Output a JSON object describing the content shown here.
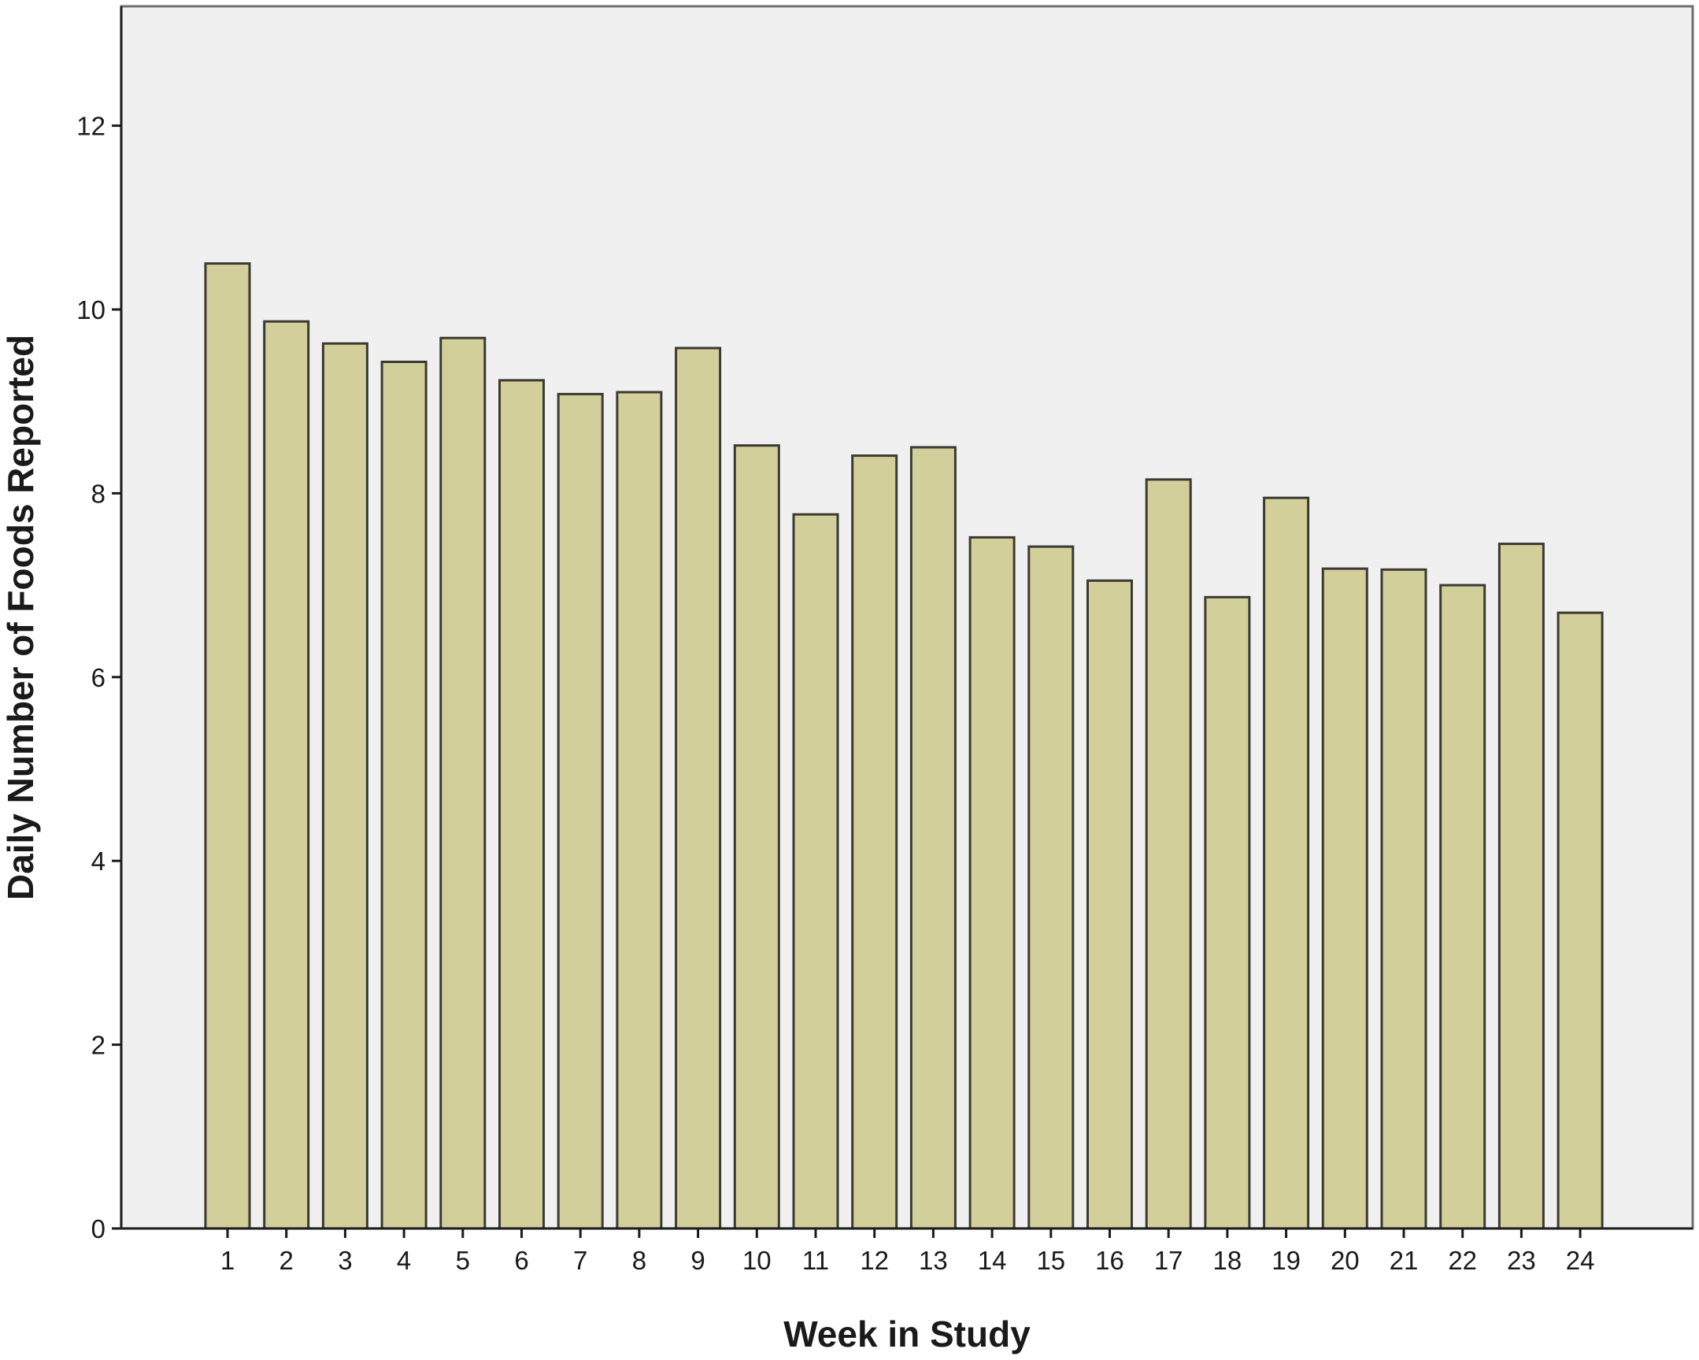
{
  "colors": {
    "plot_background": "#f0f0f0",
    "bar_fill": "#d3cf9a",
    "bar_stroke": "#3a3a32",
    "axis": "#1a1a1a"
  },
  "chart_data": {
    "type": "bar",
    "title": "",
    "xlabel": "Week in Study",
    "ylabel": "Daily Number of Foods Reported",
    "categories": [
      "1",
      "2",
      "3",
      "4",
      "5",
      "6",
      "7",
      "8",
      "9",
      "10",
      "11",
      "12",
      "13",
      "14",
      "15",
      "16",
      "17",
      "18",
      "19",
      "20",
      "21",
      "22",
      "23",
      "24"
    ],
    "values": [
      10.5,
      9.87,
      9.63,
      9.43,
      9.69,
      9.23,
      9.08,
      9.1,
      9.58,
      8.52,
      7.77,
      8.41,
      8.5,
      7.52,
      7.42,
      7.05,
      8.15,
      6.87,
      7.95,
      7.18,
      7.17,
      7.0,
      7.45,
      6.7
    ],
    "ylim": [
      0,
      13.4
    ],
    "yticks": [
      0,
      2,
      4,
      6,
      8,
      10,
      12
    ],
    "grid": false,
    "legend": "none"
  }
}
